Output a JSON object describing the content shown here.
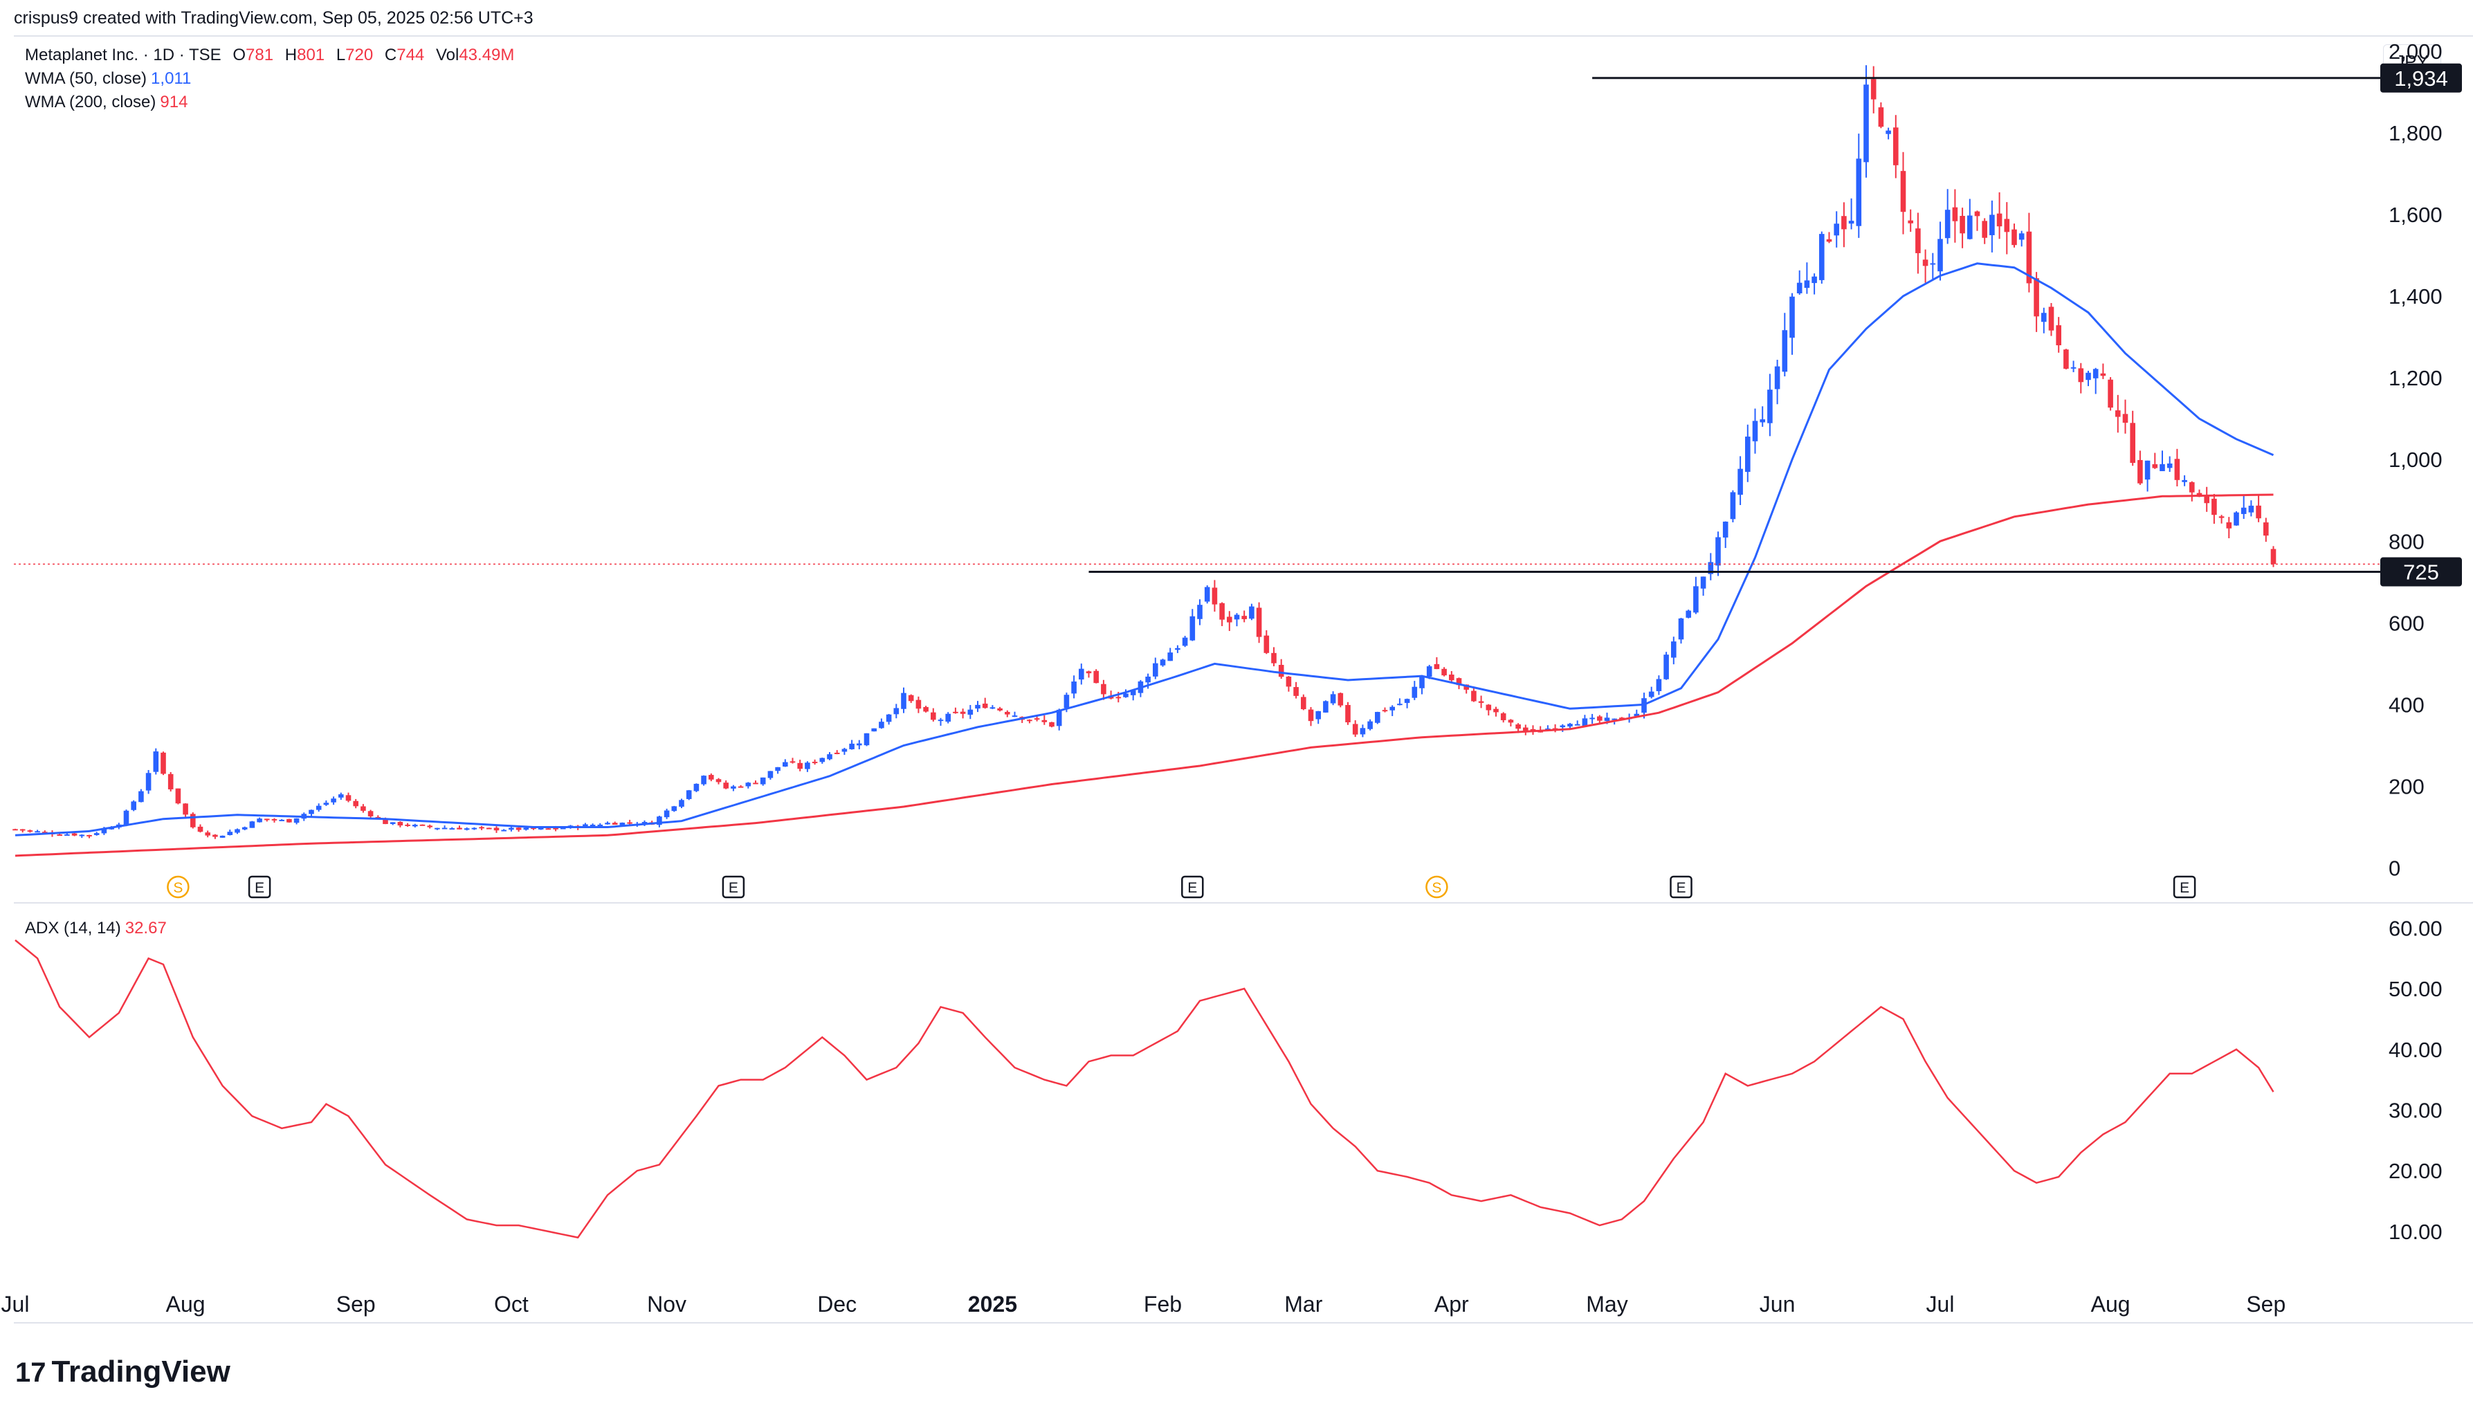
{
  "header": {
    "caption": "crispus9 created with TradingView.com, Sep 05, 2025 02:56 UTC+3"
  },
  "legend": {
    "symbol": "Metaplanet Inc. · 1D · TSE",
    "open_label": "O",
    "open": "781",
    "high_label": "H",
    "high": "801",
    "low_label": "L",
    "low": "720",
    "close_label": "C",
    "close": "744",
    "vol_label": "Vol",
    "vol": "43.49M",
    "wma50_label": "WMA (50, close)",
    "wma50_value": "1,011",
    "wma200_label": "WMA (200, close)",
    "wma200_value": "914",
    "adx_label": "ADX (14, 14)",
    "adx_value": "32.67"
  },
  "currency": "JPY",
  "colors": {
    "up": "#2962ff",
    "down": "#f23645",
    "wma50": "#2962ff",
    "wma200": "#f23645",
    "adx": "#f23645",
    "line": "#131722",
    "grid": "#f0f3fa",
    "event_s": "#f7a600"
  },
  "brand": {
    "logo_mark": "17",
    "logo_text": "TradingView"
  },
  "chart_data": [
    {
      "type": "candlestick",
      "title": "Metaplanet Inc. · 1D · TSE",
      "ylabel": "JPY",
      "ylim": [
        -60,
        2020
      ],
      "y_ticks": [
        "0",
        "200",
        "400",
        "600",
        "800",
        "1,000",
        "1,200",
        "1,400",
        "1,600",
        "1,800",
        "2,000"
      ],
      "y_tick_values": [
        0,
        200,
        400,
        600,
        800,
        1000,
        1200,
        1400,
        1600,
        1800,
        2000
      ],
      "x_labels": [
        "Jul",
        "Aug",
        "Sep",
        "Oct",
        "Nov",
        "Dec",
        "2025",
        "Feb",
        "Mar",
        "Apr",
        "May",
        "Jun",
        "Jul",
        "Aug",
        "Sep"
      ],
      "x_label_positions": [
        0,
        23,
        46,
        67,
        88,
        111,
        132,
        155,
        174,
        194,
        215,
        238,
        260,
        283,
        304
      ],
      "horizontal_lines": [
        {
          "label": "1,934",
          "value": 1934,
          "from_day": 213
        },
        {
          "label": "725",
          "value": 725,
          "from_day": 145
        }
      ],
      "last_price": 744,
      "events": [
        {
          "type": "S",
          "day": 22
        },
        {
          "type": "E",
          "day": 33
        },
        {
          "type": "E",
          "day": 97
        },
        {
          "type": "E",
          "day": 159
        },
        {
          "type": "S",
          "day": 192
        },
        {
          "type": "E",
          "day": 225
        },
        {
          "type": "E",
          "day": 293
        }
      ],
      "days": 306,
      "close_anchors": [
        [
          0,
          95
        ],
        [
          5,
          85
        ],
        [
          10,
          80
        ],
        [
          14,
          110
        ],
        [
          17,
          190
        ],
        [
          19,
          280
        ],
        [
          20,
          230
        ],
        [
          22,
          160
        ],
        [
          24,
          100
        ],
        [
          27,
          75
        ],
        [
          30,
          95
        ],
        [
          33,
          120
        ],
        [
          37,
          115
        ],
        [
          42,
          160
        ],
        [
          44,
          180
        ],
        [
          46,
          150
        ],
        [
          50,
          110
        ],
        [
          56,
          100
        ],
        [
          64,
          95
        ],
        [
          72,
          95
        ],
        [
          80,
          110
        ],
        [
          86,
          110
        ],
        [
          90,
          170
        ],
        [
          93,
          230
        ],
        [
          96,
          195
        ],
        [
          100,
          210
        ],
        [
          104,
          260
        ],
        [
          106,
          245
        ],
        [
          110,
          280
        ],
        [
          114,
          310
        ],
        [
          118,
          380
        ],
        [
          120,
          420
        ],
        [
          124,
          360
        ],
        [
          128,
          380
        ],
        [
          131,
          400
        ],
        [
          136,
          370
        ],
        [
          140,
          350
        ],
        [
          144,
          490
        ],
        [
          147,
          420
        ],
        [
          151,
          430
        ],
        [
          154,
          500
        ],
        [
          158,
          560
        ],
        [
          161,
          690
        ],
        [
          163,
          600
        ],
        [
          167,
          630
        ],
        [
          169,
          520
        ],
        [
          172,
          440
        ],
        [
          175,
          360
        ],
        [
          178,
          420
        ],
        [
          181,
          330
        ],
        [
          184,
          380
        ],
        [
          188,
          410
        ],
        [
          191,
          500
        ],
        [
          194,
          460
        ],
        [
          198,
          400
        ],
        [
          202,
          350
        ],
        [
          205,
          330
        ],
        [
          210,
          360
        ],
        [
          216,
          360
        ],
        [
          219,
          380
        ],
        [
          222,
          470
        ],
        [
          225,
          600
        ],
        [
          228,
          720
        ],
        [
          231,
          830
        ],
        [
          234,
          1050
        ],
        [
          237,
          1150
        ],
        [
          240,
          1400
        ],
        [
          243,
          1480
        ],
        [
          246,
          1600
        ],
        [
          248,
          1570
        ],
        [
          250,
          1880
        ],
        [
          252,
          1850
        ],
        [
          254,
          1700
        ],
        [
          257,
          1500
        ],
        [
          259,
          1450
        ],
        [
          261,
          1590
        ],
        [
          264,
          1580
        ],
        [
          268,
          1560
        ],
        [
          271,
          1540
        ],
        [
          273,
          1380
        ],
        [
          276,
          1300
        ],
        [
          278,
          1200
        ],
        [
          281,
          1210
        ],
        [
          284,
          1120
        ],
        [
          287,
          960
        ],
        [
          290,
          1010
        ],
        [
          293,
          940
        ],
        [
          296,
          880
        ],
        [
          299,
          850
        ],
        [
          302,
          870
        ],
        [
          304,
          830
        ],
        [
          305,
          744
        ]
      ],
      "wma50_anchors": [
        [
          0,
          80
        ],
        [
          10,
          90
        ],
        [
          20,
          120
        ],
        [
          30,
          130
        ],
        [
          40,
          125
        ],
        [
          50,
          120
        ],
        [
          60,
          110
        ],
        [
          70,
          100
        ],
        [
          80,
          100
        ],
        [
          90,
          115
        ],
        [
          100,
          170
        ],
        [
          110,
          225
        ],
        [
          120,
          300
        ],
        [
          130,
          345
        ],
        [
          140,
          380
        ],
        [
          150,
          430
        ],
        [
          157,
          470
        ],
        [
          162,
          500
        ],
        [
          170,
          480
        ],
        [
          180,
          460
        ],
        [
          190,
          470
        ],
        [
          200,
          430
        ],
        [
          210,
          390
        ],
        [
          220,
          400
        ],
        [
          225,
          440
        ],
        [
          230,
          560
        ],
        [
          235,
          760
        ],
        [
          240,
          1000
        ],
        [
          245,
          1220
        ],
        [
          250,
          1320
        ],
        [
          255,
          1400
        ],
        [
          260,
          1450
        ],
        [
          265,
          1480
        ],
        [
          270,
          1470
        ],
        [
          275,
          1420
        ],
        [
          280,
          1360
        ],
        [
          285,
          1260
        ],
        [
          290,
          1180
        ],
        [
          295,
          1100
        ],
        [
          300,
          1050
        ],
        [
          305,
          1011
        ]
      ],
      "wma200_anchors": [
        [
          0,
          30
        ],
        [
          20,
          45
        ],
        [
          40,
          60
        ],
        [
          60,
          70
        ],
        [
          80,
          80
        ],
        [
          100,
          110
        ],
        [
          120,
          150
        ],
        [
          140,
          205
        ],
        [
          160,
          250
        ],
        [
          175,
          295
        ],
        [
          190,
          320
        ],
        [
          210,
          340
        ],
        [
          222,
          380
        ],
        [
          230,
          430
        ],
        [
          240,
          550
        ],
        [
          250,
          690
        ],
        [
          260,
          800
        ],
        [
          270,
          860
        ],
        [
          280,
          890
        ],
        [
          290,
          910
        ],
        [
          305,
          914
        ]
      ]
    },
    {
      "type": "line",
      "title": "ADX (14, 14)",
      "ylim": [
        6,
        63
      ],
      "y_ticks": [
        "10.00",
        "20.00",
        "30.00",
        "40.00",
        "50.00",
        "60.00"
      ],
      "y_tick_values": [
        10,
        20,
        30,
        40,
        50,
        60
      ],
      "series": [
        {
          "name": "ADX (14, 14)",
          "points": [
            [
              0,
              58
            ],
            [
              3,
              55
            ],
            [
              6,
              47
            ],
            [
              10,
              42
            ],
            [
              14,
              46
            ],
            [
              18,
              55
            ],
            [
              20,
              54
            ],
            [
              24,
              42
            ],
            [
              28,
              34
            ],
            [
              32,
              29
            ],
            [
              36,
              27
            ],
            [
              40,
              28
            ],
            [
              42,
              31
            ],
            [
              45,
              29
            ],
            [
              50,
              21
            ],
            [
              56,
              16
            ],
            [
              61,
              12
            ],
            [
              65,
              11
            ],
            [
              68,
              11
            ],
            [
              72,
              10
            ],
            [
              76,
              9
            ],
            [
              80,
              16
            ],
            [
              84,
              20
            ],
            [
              87,
              21
            ],
            [
              92,
              29
            ],
            [
              95,
              34
            ],
            [
              98,
              35
            ],
            [
              101,
              35
            ],
            [
              104,
              37
            ],
            [
              107,
              40
            ],
            [
              109,
              42
            ],
            [
              112,
              39
            ],
            [
              115,
              35
            ],
            [
              119,
              37
            ],
            [
              122,
              41
            ],
            [
              125,
              47
            ],
            [
              128,
              46
            ],
            [
              131,
              42
            ],
            [
              135,
              37
            ],
            [
              139,
              35
            ],
            [
              142,
              34
            ],
            [
              145,
              38
            ],
            [
              148,
              39
            ],
            [
              151,
              39
            ],
            [
              154,
              41
            ],
            [
              157,
              43
            ],
            [
              160,
              48
            ],
            [
              163,
              49
            ],
            [
              166,
              50
            ],
            [
              169,
              44
            ],
            [
              172,
              38
            ],
            [
              175,
              31
            ],
            [
              178,
              27
            ],
            [
              181,
              24
            ],
            [
              184,
              20
            ],
            [
              188,
              19
            ],
            [
              191,
              18
            ],
            [
              194,
              16
            ],
            [
              198,
              15
            ],
            [
              202,
              16
            ],
            [
              206,
              14
            ],
            [
              210,
              13
            ],
            [
              214,
              11
            ],
            [
              217,
              12
            ],
            [
              220,
              15
            ],
            [
              224,
              22
            ],
            [
              228,
              28
            ],
            [
              231,
              36
            ],
            [
              234,
              34
            ],
            [
              237,
              35
            ],
            [
              240,
              36
            ],
            [
              243,
              38
            ],
            [
              246,
              41
            ],
            [
              249,
              44
            ],
            [
              252,
              47
            ],
            [
              255,
              45
            ],
            [
              258,
              38
            ],
            [
              261,
              32
            ],
            [
              264,
              28
            ],
            [
              267,
              24
            ],
            [
              270,
              20
            ],
            [
              273,
              18
            ],
            [
              276,
              19
            ],
            [
              279,
              23
            ],
            [
              282,
              26
            ],
            [
              285,
              28
            ],
            [
              288,
              32
            ],
            [
              291,
              36
            ],
            [
              294,
              36
            ],
            [
              297,
              38
            ],
            [
              300,
              40
            ],
            [
              303,
              37
            ],
            [
              305,
              33
            ]
          ]
        }
      ]
    }
  ]
}
